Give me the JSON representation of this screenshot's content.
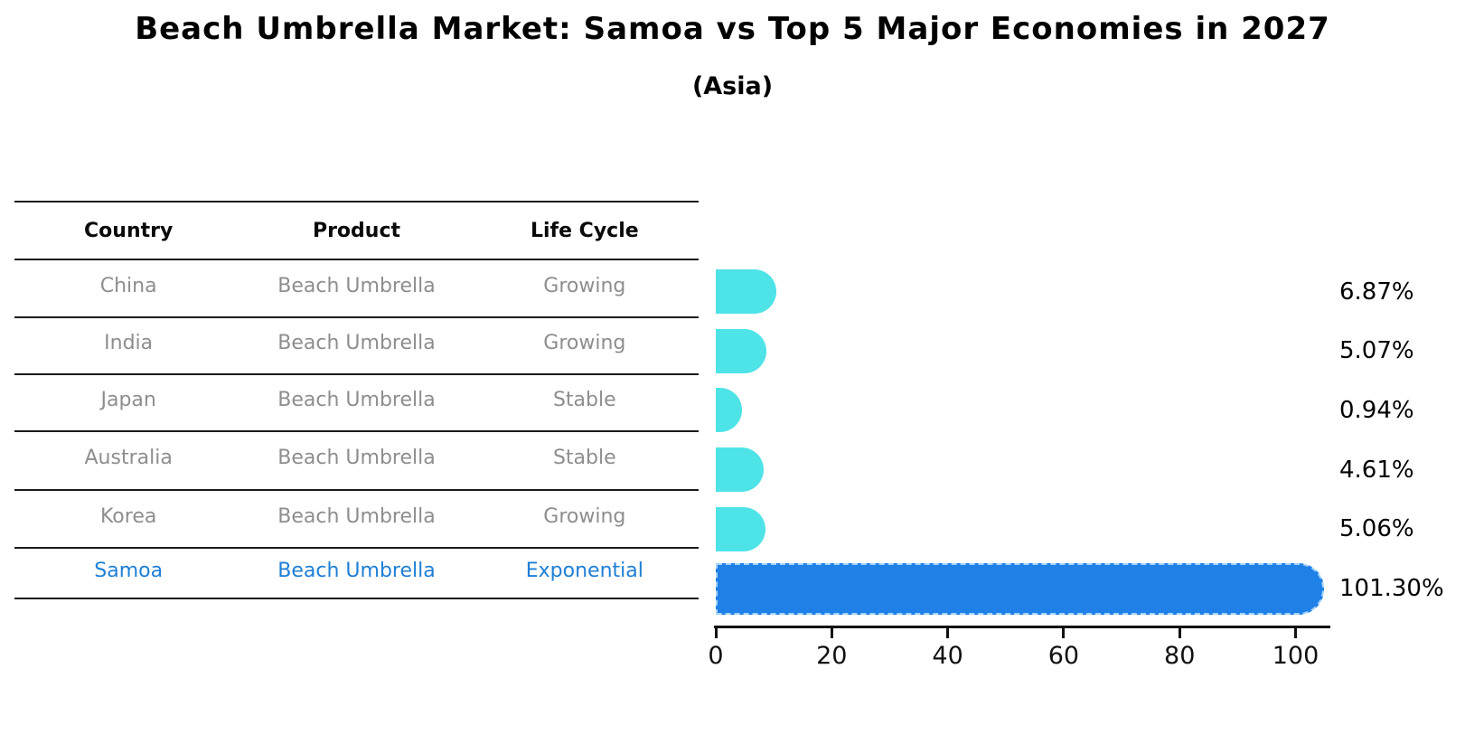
{
  "title": "Beach Umbrella Market: Samoa vs Top 5 Major Economies in 2027",
  "subtitle": "(Asia)",
  "table": {
    "headers": [
      "Country",
      "Product",
      "Life Cycle"
    ],
    "rows": [
      {
        "country": "China",
        "product": "Beach Umbrella",
        "life_cycle": "Growing",
        "highlight": false
      },
      {
        "country": "India",
        "product": "Beach Umbrella",
        "life_cycle": "Growing",
        "highlight": false
      },
      {
        "country": "Japan",
        "product": "Beach Umbrella",
        "life_cycle": "Stable",
        "highlight": false
      },
      {
        "country": "Australia",
        "product": "Beach Umbrella",
        "life_cycle": "Stable",
        "highlight": false
      },
      {
        "country": "Korea",
        "product": "Beach Umbrella",
        "life_cycle": "Growing",
        "highlight": false
      },
      {
        "country": "Samoa",
        "product": "Beach Umbrella",
        "life_cycle": "Exponential",
        "highlight": true
      }
    ]
  },
  "chart_data": {
    "type": "bar",
    "orientation": "horizontal",
    "title": "Beach Umbrella Market: Samoa vs Top 5 Major Economies in 2027",
    "subtitle": "(Asia)",
    "categories": [
      "China",
      "India",
      "Japan",
      "Australia",
      "Korea",
      "Samoa"
    ],
    "values": [
      6.87,
      5.07,
      0.94,
      4.61,
      5.06,
      101.3
    ],
    "value_labels": [
      "6.87%",
      "5.07%",
      "0.94%",
      "4.61%",
      "5.06%",
      "101.30%"
    ],
    "highlight_index": 5,
    "x_ticks": [
      "0",
      "20",
      "40",
      "60",
      "80",
      "100"
    ],
    "x_tick_values": [
      0,
      20,
      40,
      60,
      80,
      100
    ],
    "xlim": [
      0,
      106
    ],
    "grid": false,
    "legend": null,
    "colors": {
      "bar_default": "#4DE3E7",
      "bar_highlight": "#1F80E8",
      "bar_highlight_border": "#A5D4FA",
      "highlight_text": "#1E7FD6",
      "table_text": "#8E8E8E",
      "axis": "#111111"
    }
  }
}
